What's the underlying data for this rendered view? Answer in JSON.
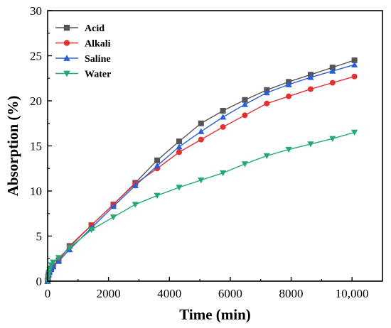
{
  "chart_data": {
    "type": "line",
    "title": "",
    "xlabel": "Time (min)",
    "ylabel": "Absorption (%)",
    "xlim": [
      0,
      11000
    ],
    "ylim": [
      0,
      30
    ],
    "x_ticks": [
      0,
      2000,
      4000,
      6000,
      8000,
      10000
    ],
    "x_tick_labels": [
      "0",
      "2000",
      "4000",
      "6000",
      "8000",
      "10,000"
    ],
    "y_ticks": [
      0,
      5,
      10,
      15,
      20,
      25,
      30
    ],
    "y_tick_labels": [
      "0",
      "5",
      "10",
      "15",
      "20",
      "25",
      "30"
    ],
    "grid": false,
    "legend_position": "top-left",
    "series": [
      {
        "name": "Acid",
        "color": "#555555",
        "marker": "square",
        "x": [
          0,
          15,
          30,
          60,
          120,
          180,
          360,
          720,
          1440,
          2160,
          2880,
          3600,
          4320,
          5040,
          5760,
          6480,
          7200,
          7920,
          8640,
          9360,
          10080
        ],
        "y": [
          0,
          0.4,
          0.7,
          1.0,
          1.4,
          1.7,
          2.3,
          3.9,
          6.2,
          8.5,
          10.9,
          13.4,
          15.5,
          17.5,
          18.9,
          20.1,
          21.2,
          22.1,
          22.9,
          23.7,
          24.5
        ]
      },
      {
        "name": "Alkali",
        "color": "#e53030",
        "marker": "circle",
        "x": [
          0,
          15,
          30,
          60,
          120,
          180,
          360,
          720,
          1440,
          2160,
          2880,
          3600,
          4320,
          5040,
          5760,
          6480,
          7200,
          7920,
          8640,
          9360,
          10080
        ],
        "y": [
          0,
          0.4,
          0.7,
          1.0,
          1.4,
          1.7,
          2.3,
          3.8,
          6.2,
          8.5,
          10.8,
          12.5,
          14.3,
          15.7,
          17.1,
          18.4,
          19.7,
          20.5,
          21.3,
          22.0,
          22.7
        ]
      },
      {
        "name": "Saline",
        "color": "#2a5fd8",
        "marker": "triangle-up",
        "x": [
          0,
          15,
          30,
          60,
          120,
          180,
          360,
          720,
          1440,
          2160,
          2880,
          3600,
          4320,
          5040,
          5760,
          6480,
          7200,
          7920,
          8640,
          9360,
          10080
        ],
        "y": [
          0,
          0.4,
          0.7,
          1.0,
          1.3,
          1.6,
          2.2,
          3.5,
          5.9,
          8.3,
          10.6,
          12.8,
          14.9,
          16.6,
          18.2,
          19.6,
          20.9,
          21.8,
          22.6,
          23.3,
          24.0
        ]
      },
      {
        "name": "Water",
        "color": "#22a97a",
        "marker": "triangle-down",
        "x": [
          0,
          15,
          30,
          60,
          120,
          180,
          360,
          720,
          1440,
          2160,
          2880,
          3600,
          4320,
          5040,
          5760,
          6480,
          7200,
          7920,
          8640,
          9360,
          10080
        ],
        "y": [
          0,
          0.5,
          0.9,
          1.3,
          1.8,
          2.1,
          2.6,
          3.7,
          5.7,
          7.1,
          8.5,
          9.5,
          10.4,
          11.2,
          12.0,
          13.0,
          13.9,
          14.6,
          15.2,
          15.8,
          16.5
        ]
      }
    ]
  }
}
